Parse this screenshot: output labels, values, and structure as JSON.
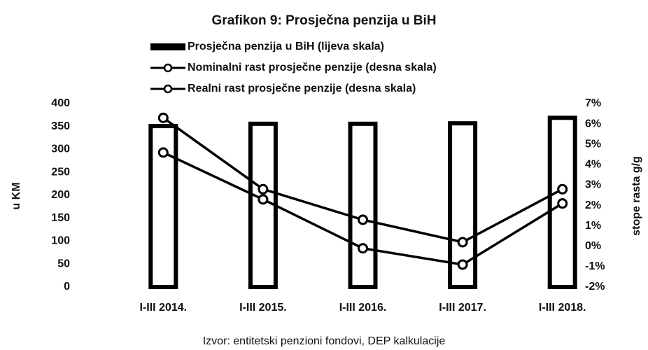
{
  "chart_data": {
    "type": "bar-line",
    "title": "Grafikon 9: Prosječna penzija u BiH",
    "categories": [
      "I-III 2014.",
      "I-III 2015.",
      "I-III 2016.",
      "I-III 2017.",
      "I-III 2018."
    ],
    "series": [
      {
        "name": "Prosječna penzija u BiH (lijeva skala)",
        "type": "bar",
        "color": "#000000",
        "values": [
          351,
          356,
          356,
          357,
          369
        ]
      },
      {
        "name": "Nominalni rast prosječne penzije (desna skala)",
        "type": "line",
        "axis": "y2",
        "color": "#000000",
        "values": [
          6.3,
          2.8,
          1.3,
          0.2,
          2.8
        ]
      },
      {
        "name": "Realni rast prosječne penzije (desna skala)",
        "type": "line",
        "axis": "y2",
        "color": "#000000",
        "values": [
          4.6,
          2.3,
          -0.1,
          -0.9,
          2.1
        ]
      }
    ],
    "ylabel": "u KM",
    "y2label": "stope rasta g/g",
    "ylim": [
      0,
      400
    ],
    "yticks": [
      0,
      50,
      100,
      150,
      200,
      250,
      300,
      350,
      400
    ],
    "y2lim": [
      -2,
      7
    ],
    "y2ticks": [
      {
        "value": -2,
        "label": "-2%"
      },
      {
        "value": -1,
        "label": "-1%"
      },
      {
        "value": 0,
        "label": "0%"
      },
      {
        "value": 1,
        "label": "1%"
      },
      {
        "value": 2,
        "label": "2%"
      },
      {
        "value": 3,
        "label": "3%"
      },
      {
        "value": 4,
        "label": "4%"
      },
      {
        "value": 5,
        "label": "5%"
      },
      {
        "value": 6,
        "label": "6%"
      },
      {
        "value": 7,
        "label": "7%"
      }
    ],
    "source": "Izvor: entitetski penzioni fondovi, DEP kalkulacije",
    "grid": false
  }
}
